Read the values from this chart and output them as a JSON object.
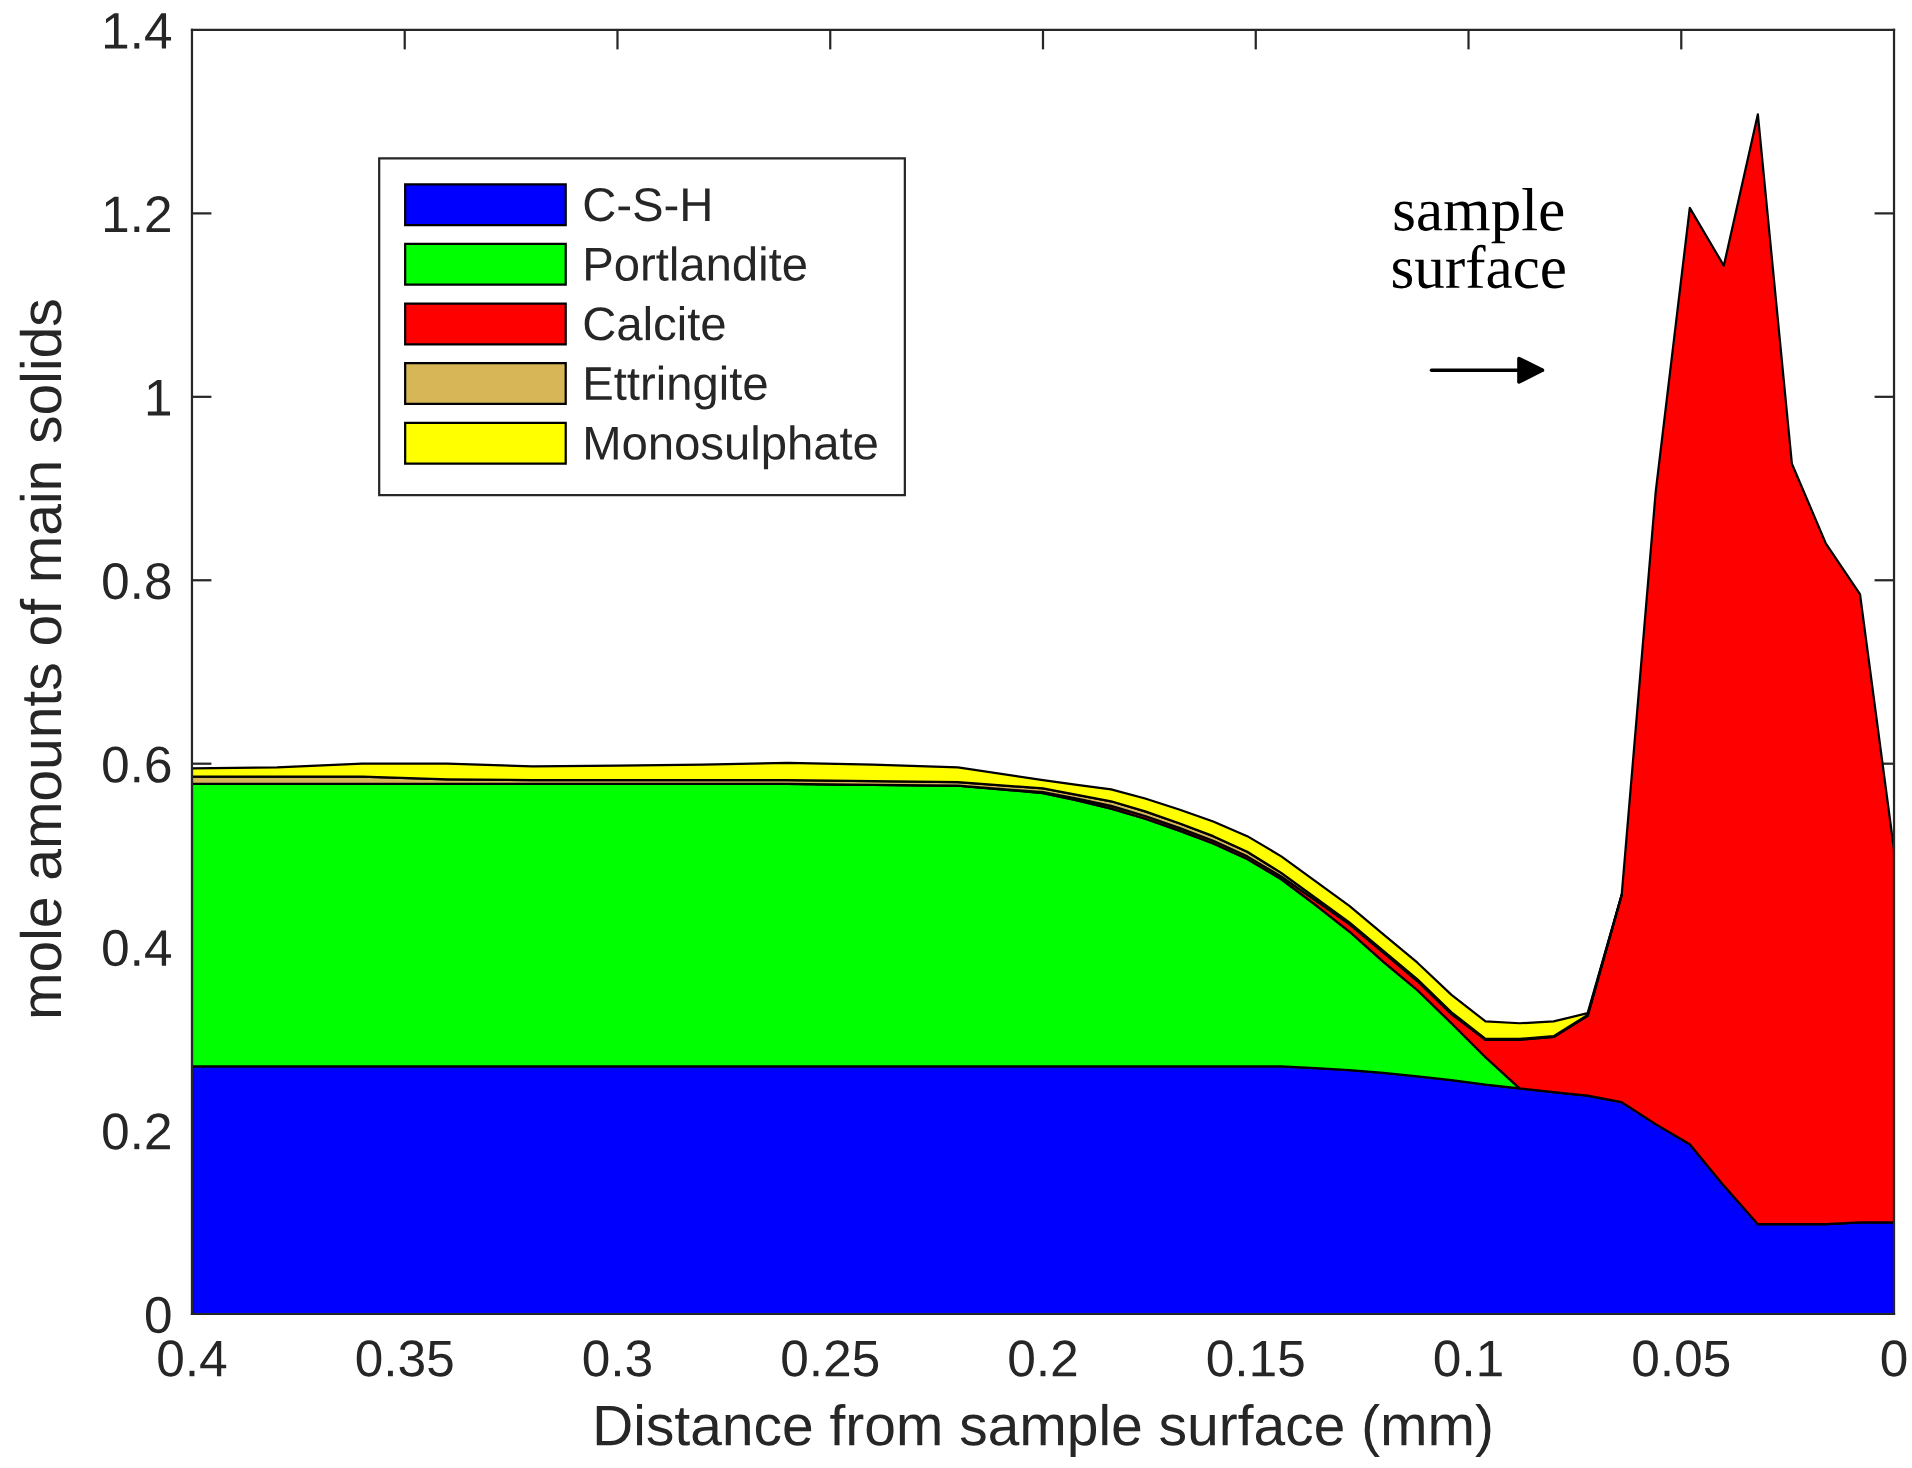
{
  "chart_data": {
    "type": "area",
    "stacked": true,
    "xlabel": "Distance from sample surface (mm)",
    "ylabel": "mole amounts of main solids",
    "x": [
      0.4,
      0.38,
      0.36,
      0.34,
      0.32,
      0.3,
      0.28,
      0.26,
      0.24,
      0.22,
      0.2,
      0.192,
      0.184,
      0.176,
      0.168,
      0.16,
      0.152,
      0.144,
      0.136,
      0.128,
      0.12,
      0.112,
      0.104,
      0.096,
      0.088,
      0.08,
      0.072,
      0.064,
      0.056,
      0.048,
      0.04,
      0.032,
      0.024,
      0.016,
      0.008,
      0
    ],
    "series": [
      {
        "name": "C-S-H",
        "color": "#0000ff",
        "values": [
          0.27,
          0.27,
          0.27,
          0.27,
          0.27,
          0.27,
          0.27,
          0.27,
          0.27,
          0.27,
          0.27,
          0.27,
          0.27,
          0.27,
          0.27,
          0.27,
          0.27,
          0.27,
          0.268,
          0.266,
          0.263,
          0.259,
          0.255,
          0.25,
          0.246,
          0.242,
          0.238,
          0.231,
          0.207,
          0.185,
          0.14,
          0.098,
          0.098,
          0.098,
          0.1,
          0.1
        ]
      },
      {
        "name": "Portlandite",
        "color": "#00ff00",
        "values": [
          0.308,
          0.308,
          0.308,
          0.308,
          0.308,
          0.308,
          0.308,
          0.308,
          0.307,
          0.306,
          0.298,
          0.29,
          0.281,
          0.27,
          0.257,
          0.243,
          0.226,
          0.204,
          0.178,
          0.151,
          0.121,
          0.094,
          0.062,
          0.03,
          0,
          0,
          0,
          0,
          0,
          0,
          0,
          0,
          0,
          0,
          0,
          0
        ]
      },
      {
        "name": "Calcite",
        "color": "#ff0000",
        "values": [
          0,
          0,
          0,
          0,
          0,
          0,
          0,
          0,
          0,
          0,
          0.001,
          0.002,
          0.003,
          0.003,
          0.003,
          0.003,
          0.003,
          0.003,
          0.005,
          0.008,
          0.01,
          0.01,
          0.01,
          0.019,
          0.053,
          0.06,
          0.087,
          0.226,
          0.69,
          1.021,
          1.003,
          1.21,
          0.829,
          0.742,
          0.685,
          0.406
        ]
      },
      {
        "name": "Ettringite",
        "color": "#d6b656",
        "values": [
          0.008,
          0.008,
          0.008,
          0.005,
          0.004,
          0.004,
          0.004,
          0.004,
          0.004,
          0.004,
          0.004,
          0.004,
          0.005,
          0.005,
          0.005,
          0.005,
          0.005,
          0.004,
          0.003,
          0.002,
          0.002,
          0.002,
          0.002,
          0.001,
          0.001,
          0.001,
          0.001,
          0,
          null,
          null,
          null,
          null,
          null,
          null,
          null,
          null
        ]
      },
      {
        "name": "Monosulphate",
        "color": "#ffff00",
        "values": [
          0.009,
          0.01,
          0.014,
          0.017,
          0.015,
          0.016,
          0.017,
          0.019,
          0.018,
          0.016,
          0.009,
          0.011,
          0.013,
          0.014,
          0.015,
          0.016,
          0.017,
          0.018,
          0.018,
          0.018,
          0.018,
          0.018,
          0.019,
          0.019,
          0.017,
          0.016,
          0.002,
          0,
          null,
          null,
          null,
          null,
          null,
          null,
          null,
          null
        ]
      }
    ],
    "xlim": [
      0.4,
      0
    ],
    "xticks": [
      0.4,
      0.35,
      0.3,
      0.25,
      0.2,
      0.15,
      0.1,
      0.05,
      0
    ],
    "ylim": [
      0,
      1.4
    ],
    "yticks": [
      0,
      0.2,
      0.4,
      0.6,
      0.8,
      1,
      1.2,
      1.4
    ],
    "legend": "top left",
    "annotations": [
      "sample\nsurface"
    ]
  }
}
